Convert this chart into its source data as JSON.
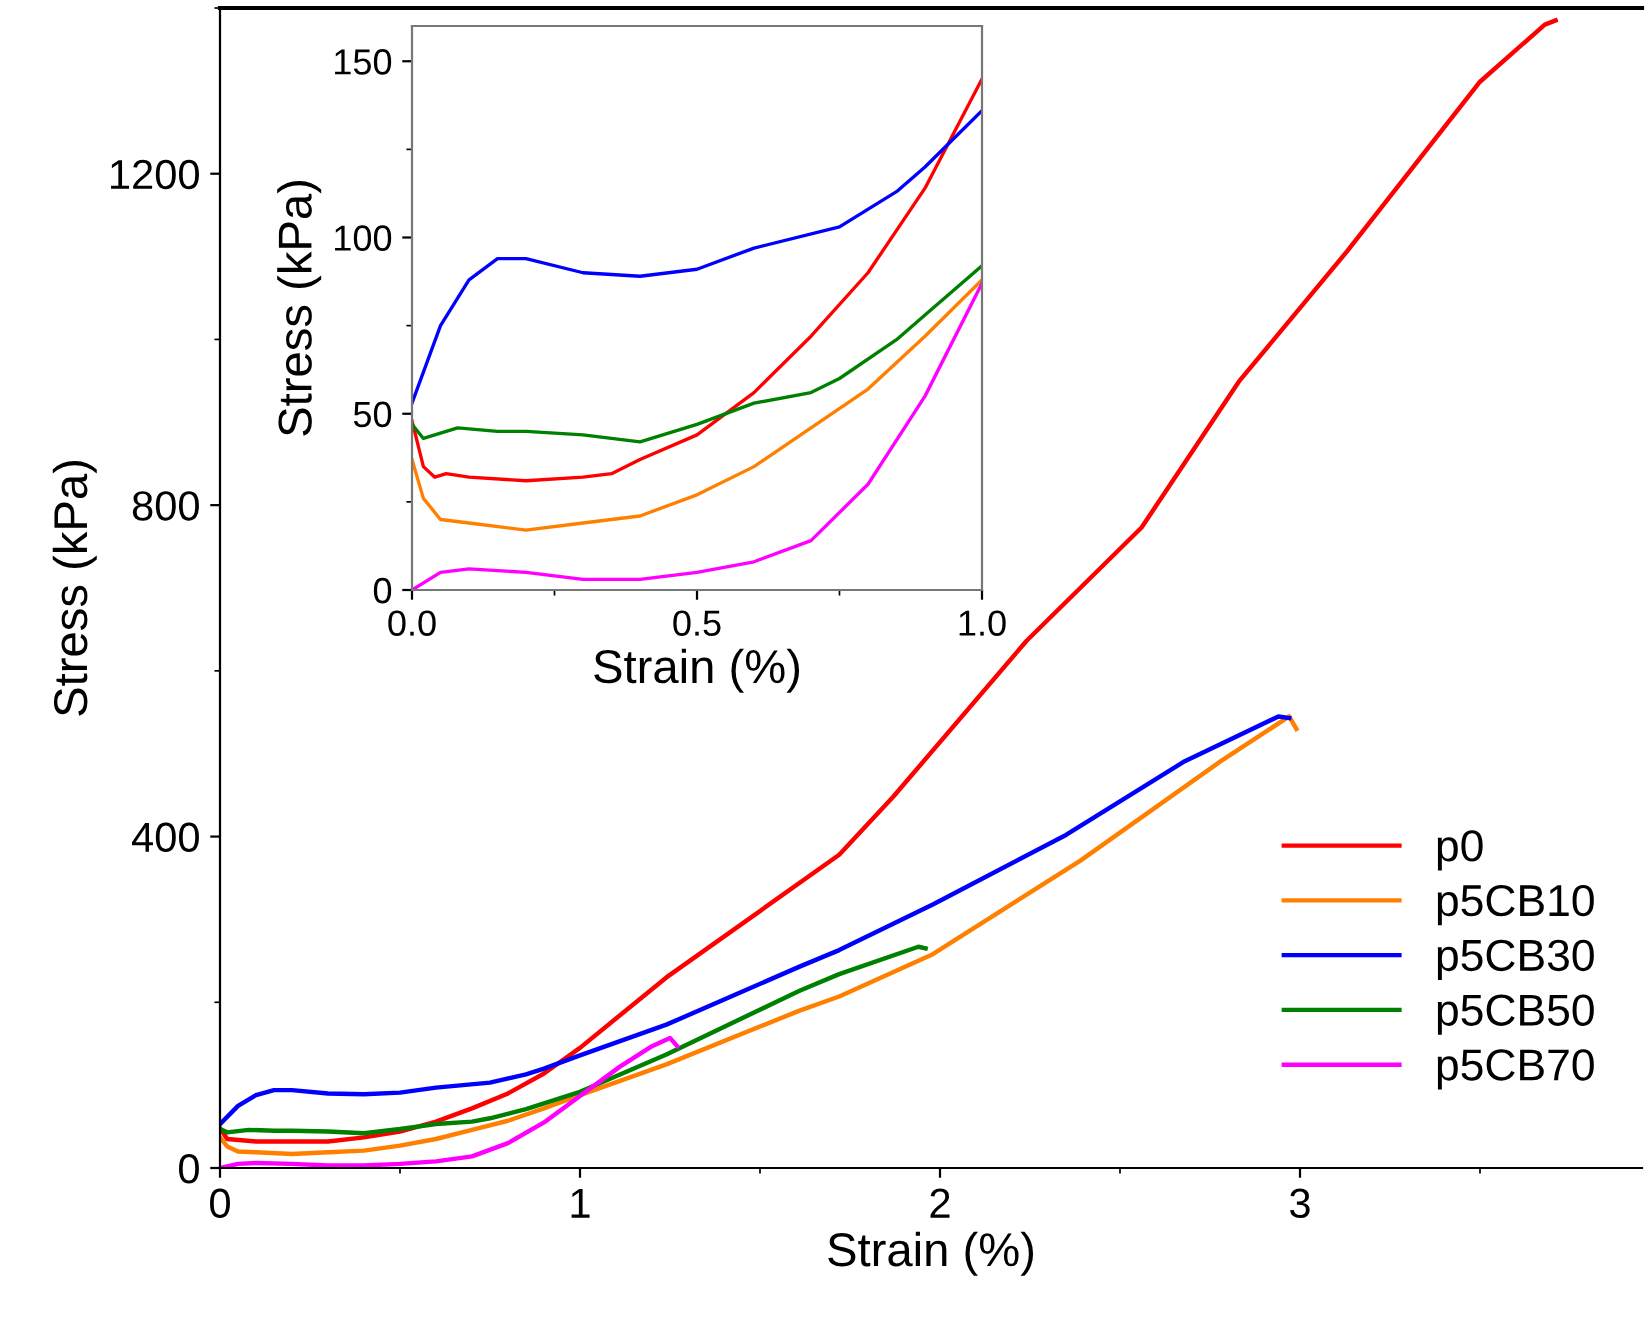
{
  "chart_data": [
    {
      "type": "line",
      "xlabel": "Strain (%)",
      "ylabel": "Stress (kPa)",
      "xlim": [
        0,
        3.95
      ],
      "ylim": [
        0,
        1400
      ],
      "xticks": [
        0,
        1,
        2,
        3
      ],
      "yticks": [
        0,
        400,
        800,
        1200
      ],
      "legend": "right",
      "grid": false,
      "series": [
        {
          "name": "p0",
          "color": "#ff0000",
          "x": [
            0,
            0.02,
            0.1,
            0.3,
            0.4,
            0.5,
            0.6,
            0.7,
            0.8,
            0.9,
            1.0,
            1.24,
            1.72,
            1.87,
            2.24,
            2.56,
            2.83,
            3.13,
            3.5,
            3.68,
            3.71
          ],
          "values": [
            48,
            35,
            32,
            32,
            37,
            44,
            56,
            72,
            90,
            114,
            145,
            230,
            378,
            448,
            636,
            773,
            949,
            1106,
            1311,
            1380,
            1385
          ]
        },
        {
          "name": "p5CB10",
          "color": "#ff8000",
          "x": [
            0,
            0.02,
            0.05,
            0.1,
            0.2,
            0.3,
            0.4,
            0.5,
            0.6,
            0.7,
            0.8,
            0.9,
            1.0,
            1.24,
            1.61,
            1.72,
            1.98,
            2.39,
            2.78,
            2.97,
            2.99
          ],
          "values": [
            37,
            26,
            20,
            19,
            17,
            19,
            21,
            27,
            35,
            46,
            57,
            72,
            88,
            125,
            190,
            207,
            258,
            371,
            491,
            545,
            530
          ]
        },
        {
          "name": "p5CB30",
          "color": "#0000ff",
          "x": [
            0,
            0.05,
            0.1,
            0.15,
            0.2,
            0.3,
            0.4,
            0.5,
            0.6,
            0.75,
            0.85,
            0.9,
            1.0,
            1.24,
            1.61,
            1.72,
            1.98,
            2.35,
            2.68,
            2.94,
            2.97
          ],
          "values": [
            53,
            75,
            88,
            94,
            94,
            90,
            89,
            91,
            97,
            103,
            113,
            120,
            136,
            173,
            243,
            263,
            318,
            402,
            491,
            545,
            543
          ]
        },
        {
          "name": "p5CB50",
          "color": "#008000",
          "x": [
            0,
            0.02,
            0.08,
            0.15,
            0.2,
            0.3,
            0.4,
            0.5,
            0.6,
            0.7,
            0.75,
            0.85,
            0.9,
            1.0,
            1.24,
            1.61,
            1.72,
            1.94,
            1.96
          ],
          "values": [
            47,
            43,
            46,
            45,
            45,
            44,
            42,
            47,
            53,
            56,
            60,
            71,
            78,
            92,
            137,
            214,
            234,
            267,
            265
          ]
        },
        {
          "name": "p5CB70",
          "color": "#ff00ff",
          "x": [
            0,
            0.05,
            0.1,
            0.2,
            0.3,
            0.4,
            0.5,
            0.6,
            0.7,
            0.8,
            0.9,
            1.0,
            1.11,
            1.2,
            1.25,
            1.27
          ],
          "values": [
            0,
            5,
            6,
            5,
            3,
            3,
            5,
            8,
            14,
            30,
            55,
            87,
            122,
            147,
            157,
            147
          ]
        }
      ]
    },
    {
      "type": "line",
      "xlabel": "Strain (%)",
      "ylabel": "Stress (kPa)",
      "xlim": [
        0,
        1
      ],
      "ylim": [
        0,
        160
      ],
      "xticks": [
        {
          "value": 0,
          "label": "0.0"
        },
        0.5,
        {
          "value": 1,
          "label": "1.0"
        }
      ],
      "yticks": [
        0,
        50,
        100,
        150
      ],
      "grid": false,
      "series": [
        {
          "color": "#ff0000",
          "x": [
            0,
            0.02,
            0.04,
            0.06,
            0.1,
            0.2,
            0.3,
            0.35,
            0.4,
            0.5,
            0.6,
            0.7,
            0.8,
            0.9,
            1.0
          ],
          "values": [
            48,
            35,
            32,
            33,
            32,
            31,
            32,
            33,
            37,
            44,
            56,
            72,
            90,
            114,
            145
          ]
        },
        {
          "color": "#ff8000",
          "x": [
            0,
            0.02,
            0.05,
            0.1,
            0.2,
            0.3,
            0.4,
            0.5,
            0.6,
            0.7,
            0.8,
            0.9,
            1.0
          ],
          "values": [
            37,
            26,
            20,
            19,
            17,
            19,
            21,
            27,
            35,
            46,
            57,
            72,
            88
          ]
        },
        {
          "color": "#0000ff",
          "x": [
            0,
            0.05,
            0.1,
            0.15,
            0.2,
            0.3,
            0.4,
            0.5,
            0.6,
            0.75,
            0.85,
            0.9,
            1.0
          ],
          "values": [
            53,
            75,
            88,
            94,
            94,
            90,
            89,
            91,
            97,
            103,
            113,
            120,
            136
          ]
        },
        {
          "color": "#008000",
          "x": [
            0,
            0.02,
            0.08,
            0.15,
            0.2,
            0.3,
            0.4,
            0.5,
            0.6,
            0.7,
            0.75,
            0.85,
            0.9,
            1.0
          ],
          "values": [
            47,
            43,
            46,
            45,
            45,
            44,
            42,
            47,
            53,
            56,
            60,
            71,
            78,
            92
          ]
        },
        {
          "color": "#ff00ff",
          "x": [
            0,
            0.05,
            0.1,
            0.2,
            0.3,
            0.4,
            0.5,
            0.6,
            0.7,
            0.8,
            0.9,
            1.0
          ],
          "values": [
            0,
            5,
            6,
            5,
            3,
            3,
            5,
            8,
            14,
            30,
            55,
            87
          ]
        }
      ]
    }
  ]
}
